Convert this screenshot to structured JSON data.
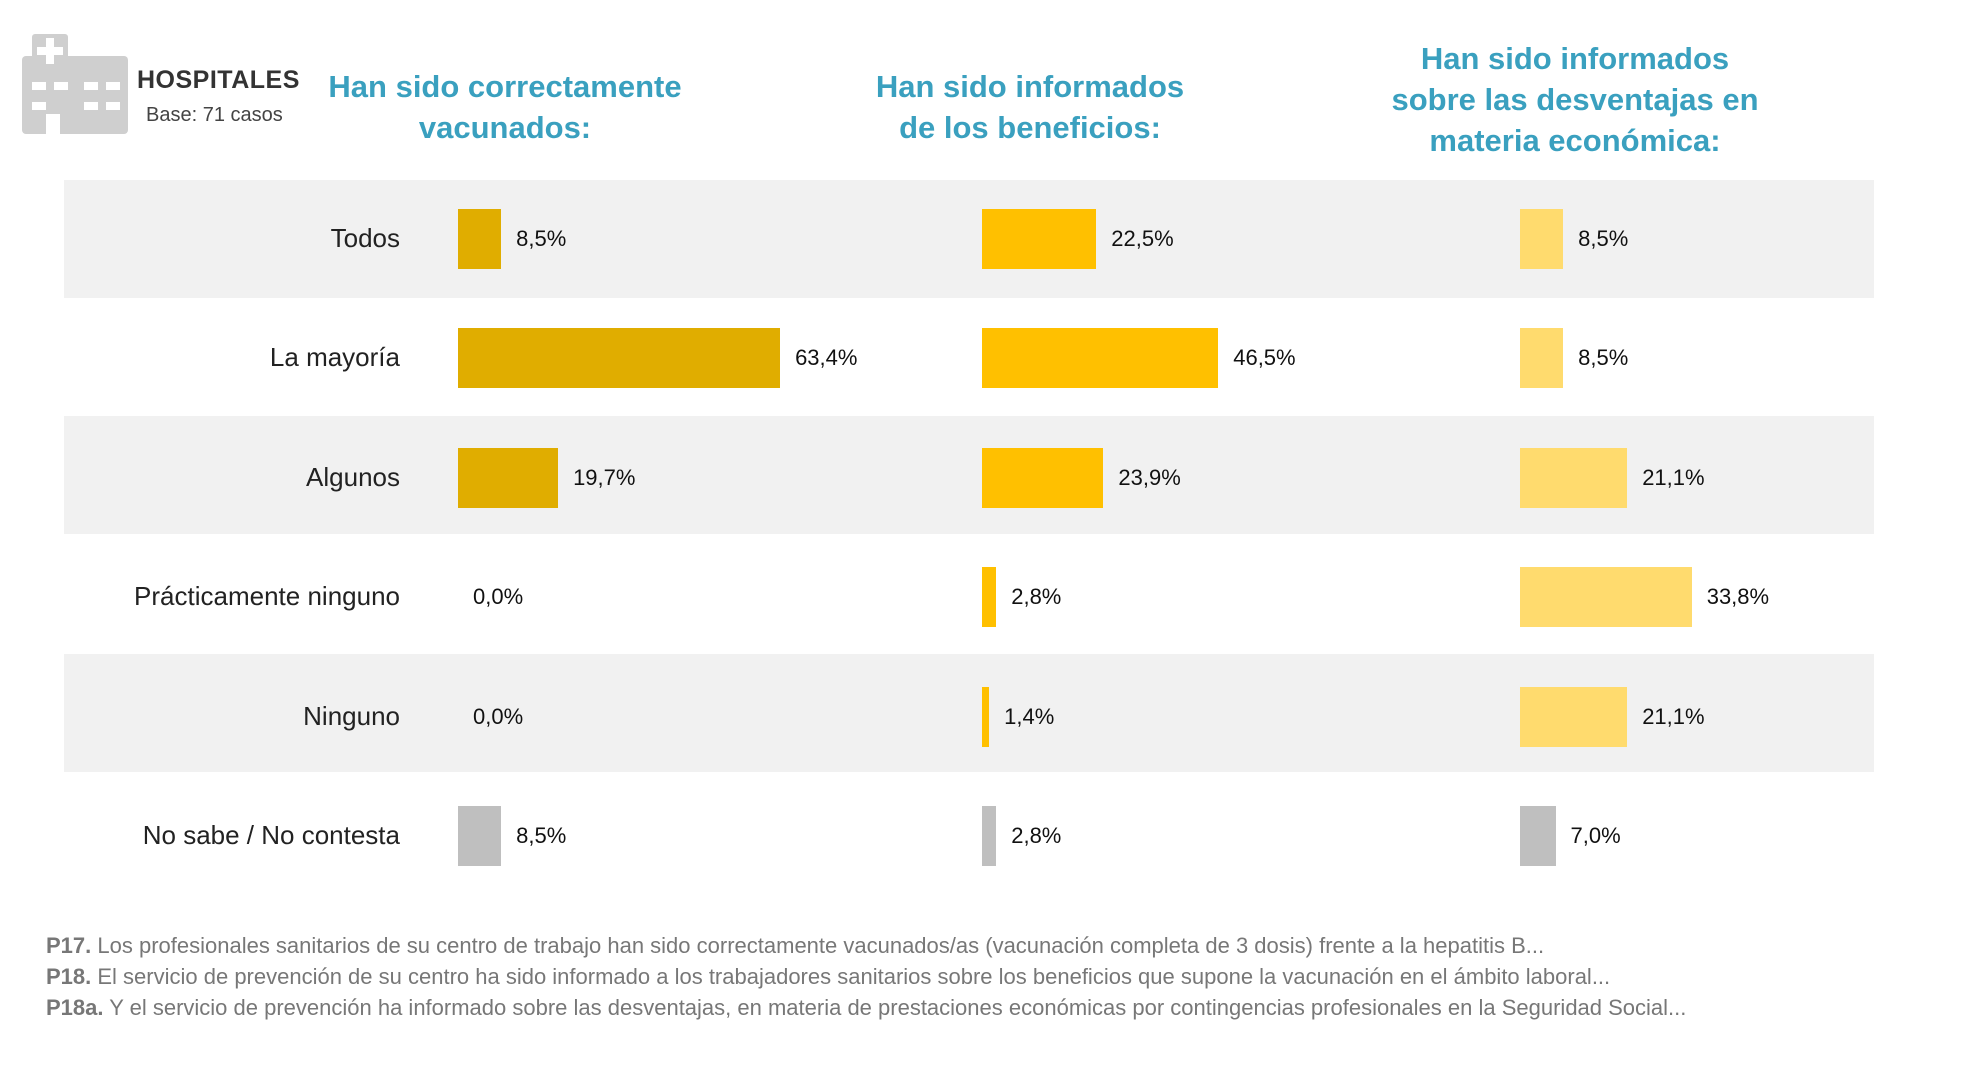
{
  "header": {
    "title": "HOSPITALES",
    "base": "Base: 71 casos",
    "icon": "hospital-building-icon"
  },
  "colors": {
    "series1": "#e0ad00",
    "series2": "#ffc000",
    "series3": "#ffdb6e",
    "no_sabe": "#bfbfbf",
    "title": "#3aa0bf",
    "band": "#f1f1f1"
  },
  "chart_data": {
    "type": "bar",
    "orientation": "horizontal",
    "categories": [
      "Todos",
      "La mayoría",
      "Algunos",
      "Prácticamente ninguno",
      "Ninguno",
      "No sabe / No contesta"
    ],
    "series": [
      {
        "name": "Han sido correctamente\nvacunados:",
        "values": [
          8.5,
          63.4,
          19.7,
          0.0,
          0.0,
          8.5
        ],
        "labels": [
          "8,5%",
          "63,4%",
          "19,7%",
          "0,0%",
          "0,0%",
          "8,5%"
        ]
      },
      {
        "name": "Han sido informados\nde los beneficios:",
        "values": [
          22.5,
          46.5,
          23.9,
          2.8,
          1.4,
          2.8
        ],
        "labels": [
          "22,5%",
          "46,5%",
          "23,9%",
          "2,8%",
          "1,4%",
          "2,8%"
        ]
      },
      {
        "name": "Han sido informados\nsobre las desventajas en\nmateria económica:",
        "values": [
          8.5,
          8.5,
          21.1,
          33.8,
          21.1,
          7.0
        ],
        "labels": [
          "8,5%",
          "8,5%",
          "21,1%",
          "33,8%",
          "21,1%",
          "7,0%"
        ]
      }
    ],
    "unit": "%",
    "grid": false,
    "legend": "none"
  },
  "footnotes": [
    {
      "ref": "P17.",
      "text": " Los profesionales sanitarios de su centro de trabajo han sido correctamente vacunados/as (vacunación completa de 3 dosis) frente a la hepatitis B..."
    },
    {
      "ref": "P18.",
      "text": " El servicio de prevención de su centro ha sido informado a los trabajadores sanitarios sobre los beneficios que supone la vacunación en el ámbito laboral..."
    },
    {
      "ref": "P18a.",
      "text": " Y el servicio de prevención ha informado sobre las desventajas, en materia de prestaciones económicas por contingencias profesionales en la Seguridad Social..."
    }
  ]
}
